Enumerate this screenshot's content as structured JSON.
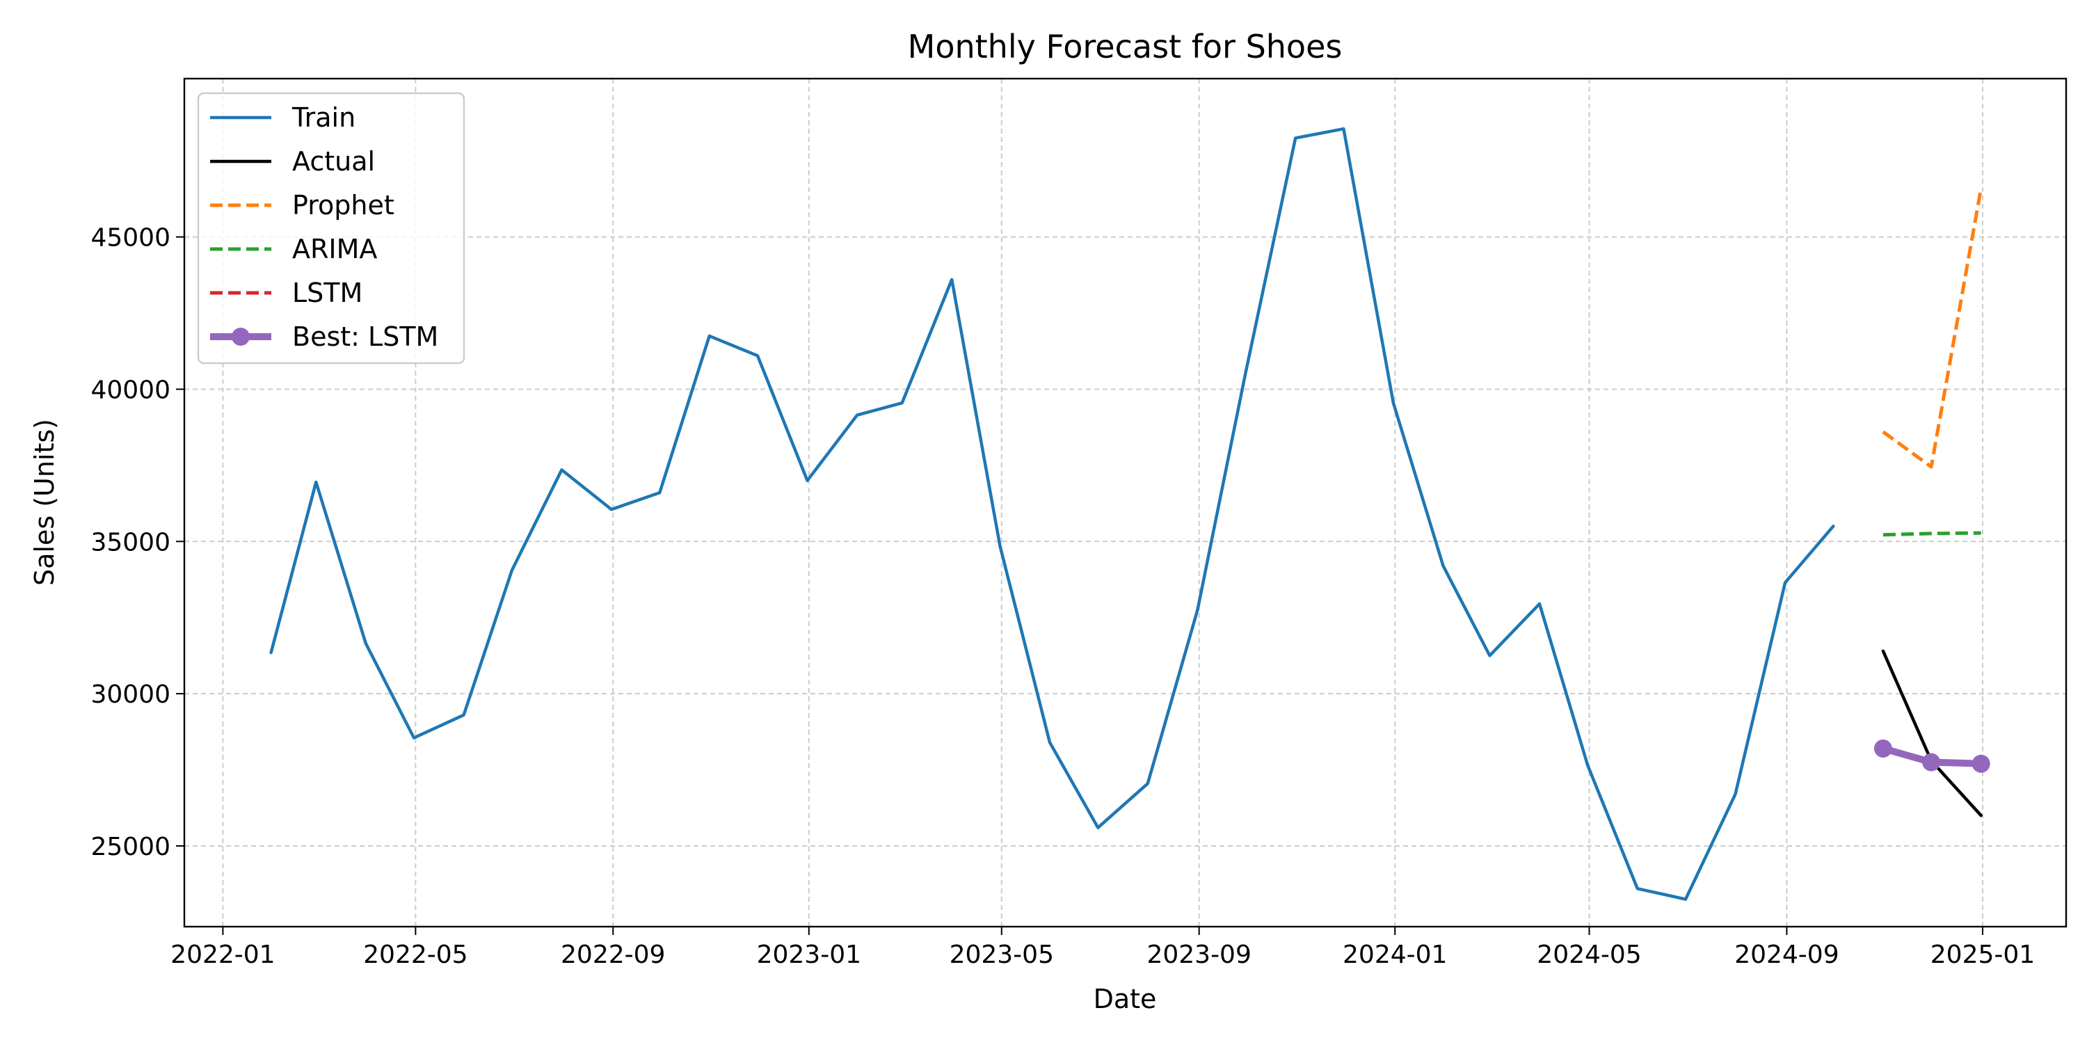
{
  "chart_data": {
    "type": "line",
    "title": "Monthly Forecast for Shoes",
    "xlabel": "Date",
    "ylabel": "Sales (Units)",
    "x_ticks": [
      "2022-01",
      "2022-05",
      "2022-09",
      "2023-01",
      "2023-05",
      "2023-09",
      "2024-01",
      "2024-05",
      "2024-09",
      "2025-01"
    ],
    "y_ticks": [
      25000,
      30000,
      35000,
      40000,
      45000
    ],
    "xlim": [
      "2021-12-08",
      "2025-02-22"
    ],
    "ylim": [
      22350,
      50200
    ],
    "grid": true,
    "legend_position": "top-left",
    "series": [
      {
        "name": "Train",
        "color": "#1f77b4",
        "style": "solid",
        "marker": "none",
        "points": [
          [
            "2022-01-31",
            31350
          ],
          [
            "2022-02-28",
            36950
          ],
          [
            "2022-03-31",
            31650
          ],
          [
            "2022-04-30",
            28550
          ],
          [
            "2022-05-31",
            29300
          ],
          [
            "2022-06-30",
            34050
          ],
          [
            "2022-07-31",
            37350
          ],
          [
            "2022-08-31",
            36050
          ],
          [
            "2022-09-30",
            36600
          ],
          [
            "2022-10-31",
            41750
          ],
          [
            "2022-11-30",
            41100
          ],
          [
            "2022-12-31",
            37000
          ],
          [
            "2023-01-31",
            39150
          ],
          [
            "2023-02-28",
            39550
          ],
          [
            "2023-03-31",
            43600
          ],
          [
            "2023-04-30",
            34850
          ],
          [
            "2023-05-31",
            28400
          ],
          [
            "2023-06-30",
            25600
          ],
          [
            "2023-07-31",
            27050
          ],
          [
            "2023-08-31",
            32750
          ],
          [
            "2023-09-30",
            40550
          ],
          [
            "2023-10-31",
            48250
          ],
          [
            "2023-11-30",
            48550
          ],
          [
            "2023-12-31",
            39550
          ],
          [
            "2024-01-31",
            34200
          ],
          [
            "2024-02-29",
            31250
          ],
          [
            "2024-03-31",
            32950
          ],
          [
            "2024-04-30",
            27650
          ],
          [
            "2024-05-31",
            23600
          ],
          [
            "2024-06-30",
            23250
          ],
          [
            "2024-07-31",
            26700
          ],
          [
            "2024-08-31",
            33650
          ],
          [
            "2024-09-30",
            35500
          ]
        ]
      },
      {
        "name": "Actual",
        "color": "#000000",
        "style": "solid",
        "marker": "none",
        "points": [
          [
            "2024-10-31",
            31400
          ],
          [
            "2024-11-30",
            27800
          ],
          [
            "2024-12-31",
            26000
          ]
        ]
      },
      {
        "name": "Prophet",
        "color": "#ff7f0e",
        "style": "dashed",
        "marker": "none",
        "points": [
          [
            "2024-10-31",
            38600
          ],
          [
            "2024-11-30",
            37450
          ],
          [
            "2024-12-31",
            46600
          ]
        ]
      },
      {
        "name": "ARIMA",
        "color": "#2ca02c",
        "style": "dashed",
        "marker": "none",
        "points": [
          [
            "2024-10-31",
            35220
          ],
          [
            "2024-11-30",
            35260
          ],
          [
            "2024-12-31",
            35280
          ]
        ]
      },
      {
        "name": "LSTM",
        "color": "#d62728",
        "style": "dashed",
        "marker": "none",
        "points": [
          [
            "2024-10-31",
            28200
          ],
          [
            "2024-11-30",
            27750
          ],
          [
            "2024-12-31",
            27700
          ]
        ]
      },
      {
        "name": "Best: LSTM",
        "color": "#9467bd",
        "style": "solid-thick",
        "marker": "circle",
        "points": [
          [
            "2024-10-31",
            28200
          ],
          [
            "2024-11-30",
            27750
          ],
          [
            "2024-12-31",
            27700
          ]
        ]
      }
    ]
  }
}
